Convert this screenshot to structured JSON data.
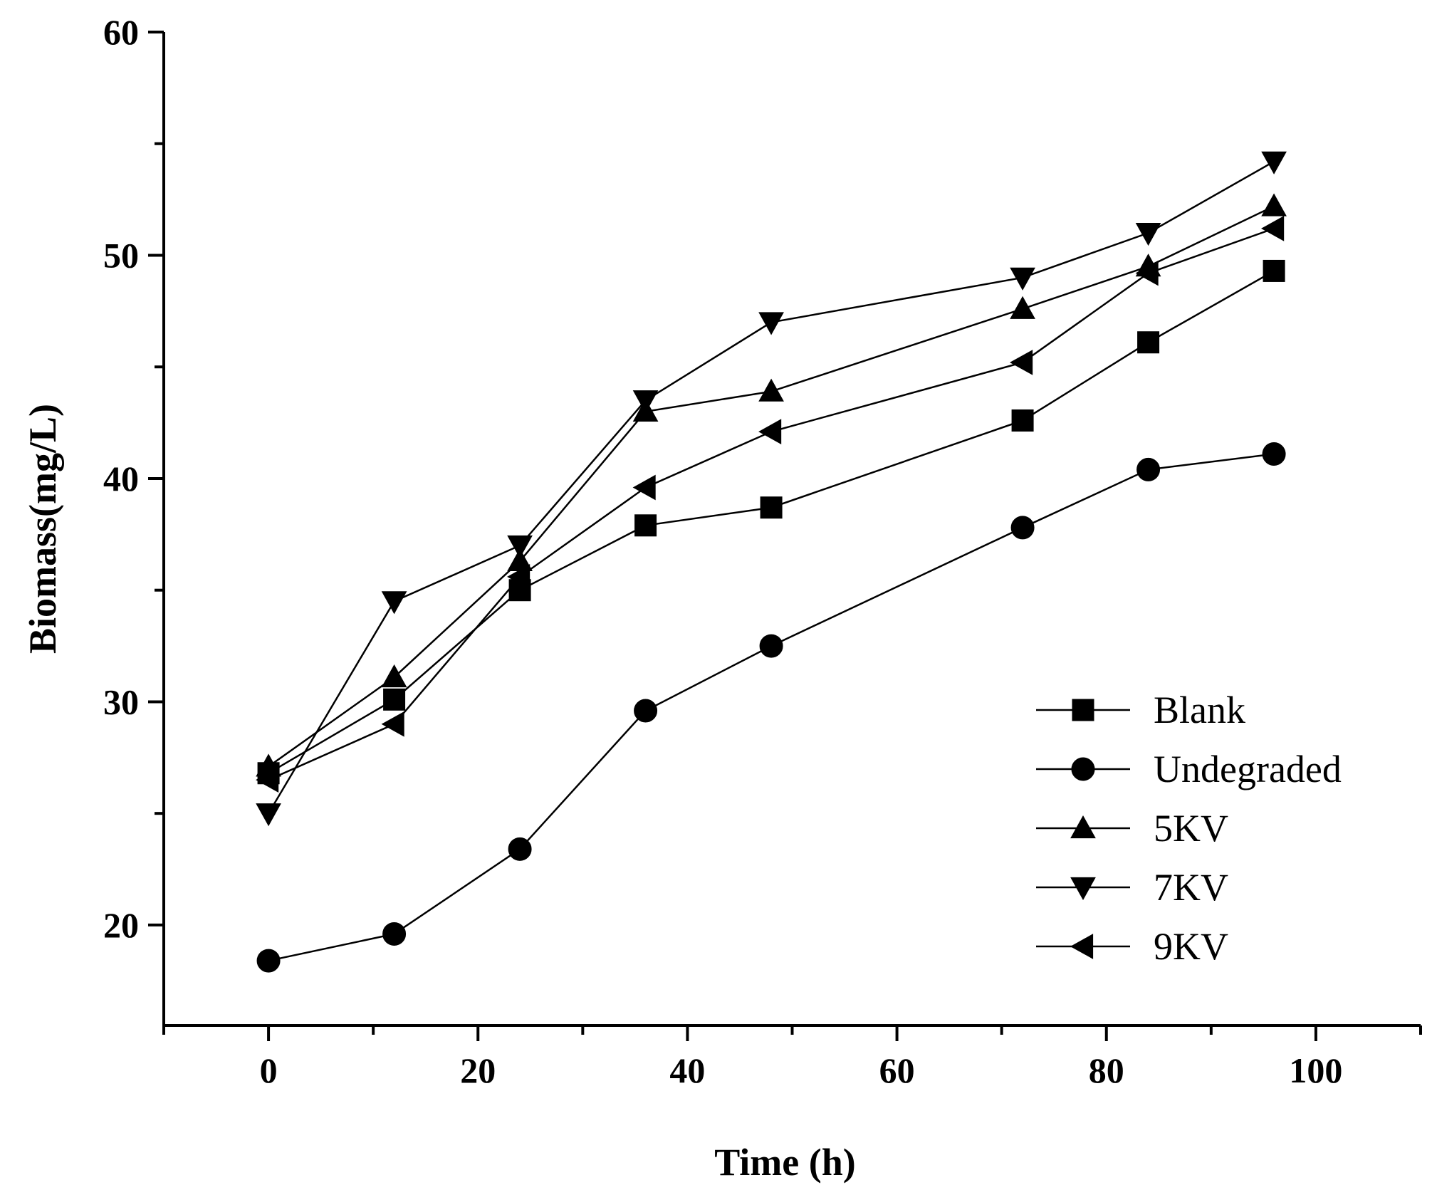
{
  "chart_data": {
    "type": "line",
    "title": "",
    "xlabel": "Time (h)",
    "ylabel": "Biomass(mg/L)",
    "xlim": [
      -10,
      110
    ],
    "ylim": [
      15.5,
      60
    ],
    "xticks": [
      0,
      20,
      40,
      60,
      80,
      100
    ],
    "yticks": [
      20,
      30,
      40,
      50,
      60
    ],
    "x": [
      0,
      12,
      24,
      36,
      48,
      72,
      84,
      96
    ],
    "grid": false,
    "legend_position": "bottom-right",
    "series": [
      {
        "name": "Blank",
        "marker": "square",
        "values": [
          26.8,
          30.1,
          35.0,
          37.9,
          38.7,
          42.6,
          46.1,
          49.3
        ]
      },
      {
        "name": "Undegraded",
        "marker": "circle",
        "values": [
          18.4,
          19.6,
          23.4,
          29.6,
          32.5,
          37.8,
          40.4,
          41.1
        ]
      },
      {
        "name": "5KV",
        "marker": "triangle-up",
        "values": [
          27.1,
          31.1,
          36.3,
          43.0,
          43.9,
          47.6,
          49.5,
          52.2
        ]
      },
      {
        "name": "7KV",
        "marker": "triangle-down",
        "values": [
          25.0,
          34.5,
          37.0,
          43.5,
          47.0,
          49.0,
          51.0,
          54.2
        ]
      },
      {
        "name": "9KV",
        "marker": "triangle-left",
        "values": [
          26.5,
          29.0,
          35.6,
          39.6,
          42.1,
          45.2,
          49.2,
          51.2
        ]
      }
    ],
    "colors": {
      "line": "#000000",
      "background": "#ffffff"
    }
  }
}
